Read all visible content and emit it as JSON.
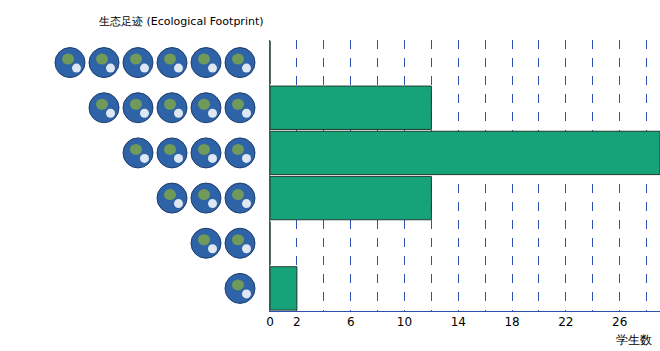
{
  "chart_data": {
    "type": "bar",
    "orientation": "horizontal",
    "ylabel": "生态足迹 (Ecological Footprint)",
    "xlabel": "学生数",
    "categories": [
      1,
      2,
      3,
      4,
      5,
      6
    ],
    "values": [
      2,
      0,
      12,
      29,
      12,
      0
    ],
    "color": "#17a37a",
    "xlim": [
      0,
      29
    ],
    "xticks": [
      0,
      2,
      6,
      10,
      14,
      18,
      22,
      26
    ],
    "grid": true,
    "tick_labels": "x",
    "marker": "earth"
  }
}
